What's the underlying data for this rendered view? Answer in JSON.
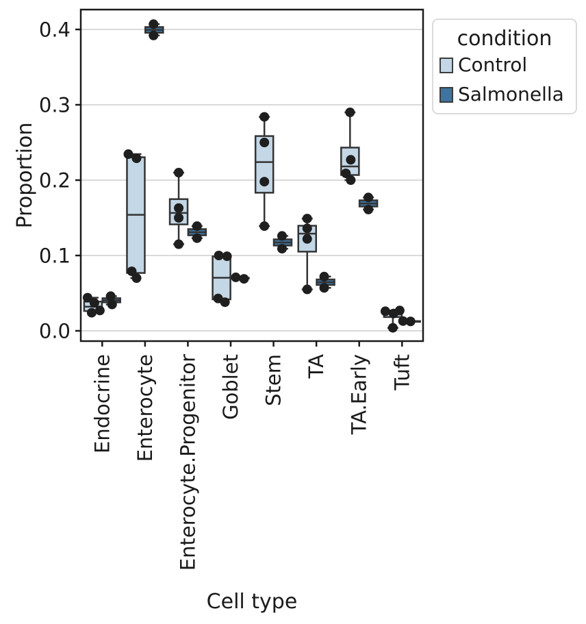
{
  "figure": {
    "background": "#ffffff"
  },
  "chart_data": {
    "type": "box",
    "title": "",
    "xlabel": "Cell type",
    "ylabel": "Proportion",
    "categories": [
      "Endocrine",
      "Enterocyte",
      "Enterocyte.Progenitor",
      "Goblet",
      "Stem",
      "TA",
      "TA.Early",
      "Tuft"
    ],
    "yticks": [
      0.0,
      0.1,
      0.2,
      0.3,
      0.4
    ],
    "ytick_labels": [
      "0.0",
      "0.1",
      "0.2",
      "0.3",
      "0.4"
    ],
    "ylim": [
      -0.0136,
      0.4264
    ],
    "grid": "horizontal",
    "legend": {
      "title": "condition",
      "position": "upper-right-outside",
      "items": [
        {
          "label": "Control",
          "color": "#c3d7e6"
        },
        {
          "label": "Salmonella",
          "color": "#40749f"
        }
      ]
    },
    "colors": {
      "box_edge": "#333333",
      "point": "#1f1f1f",
      "grid": "#d9d9d9",
      "axis": "#1a1a1a",
      "legend_border": "#cfcfcf",
      "swatch_edge": "#3c3c3c"
    },
    "series": [
      {
        "name": "Control",
        "color": "#c3d7e6",
        "boxes": [
          {
            "whislo": 0.024,
            "q1": 0.0263,
            "med": 0.032,
            "q3": 0.0388,
            "whishi": 0.044
          },
          {
            "whislo": 0.07,
            "q1": 0.0768,
            "med": 0.154,
            "q3": 0.2304,
            "whishi": 0.2345
          },
          {
            "whislo": 0.115,
            "q1": 0.1413,
            "med": 0.1565,
            "q3": 0.1748,
            "whishi": 0.21
          },
          {
            "whislo": 0.038,
            "q1": 0.0418,
            "med": 0.0705,
            "q3": 0.0988,
            "whishi": 0.1
          },
          {
            "whislo": 0.139,
            "q1": 0.1833,
            "med": 0.224,
            "q3": 0.2585,
            "whishi": 0.284
          },
          {
            "whislo": 0.055,
            "q1": 0.1051,
            "med": 0.129,
            "q3": 0.1395,
            "whishi": 0.149
          },
          {
            "whislo": 0.2,
            "q1": 0.2068,
            "med": 0.2182,
            "q3": 0.2432,
            "whishi": 0.29
          },
          {
            "whislo": 0.004,
            "q1": 0.0183,
            "med": 0.0245,
            "q3": 0.0263,
            "whishi": 0.027
          }
        ],
        "points": [
          [
            [
              0.044,
              -8
            ],
            [
              0.037,
              2
            ],
            [
              0.027,
              10
            ],
            [
              0.024,
              -2
            ]
          ],
          [
            [
              0.2345,
              -11
            ],
            [
              0.229,
              1
            ],
            [
              0.079,
              -6
            ],
            [
              0.07,
              1
            ]
          ],
          [
            [
              0.21,
              0
            ],
            [
              0.163,
              0
            ],
            [
              0.15,
              0
            ],
            [
              0.115,
              0
            ]
          ],
          [
            [
              0.1,
              -4
            ],
            [
              0.099,
              8
            ],
            [
              0.043,
              -5
            ],
            [
              0.038,
              5
            ]
          ],
          [
            [
              0.284,
              0
            ],
            [
              0.25,
              0
            ],
            [
              0.198,
              0
            ],
            [
              0.139,
              0
            ]
          ],
          [
            [
              0.149,
              0
            ],
            [
              0.136,
              0
            ],
            [
              0.122,
              0
            ],
            [
              0.055,
              0
            ]
          ],
          [
            [
              0.29,
              0
            ],
            [
              0.227,
              1
            ],
            [
              0.209,
              -6
            ],
            [
              0.2,
              1
            ]
          ],
          [
            [
              0.026,
              -11
            ],
            [
              0.023,
              1
            ],
            [
              0.027,
              10
            ],
            [
              0.004,
              0
            ]
          ]
        ]
      },
      {
        "name": "Salmonella",
        "color": "#40749f",
        "boxes": [
          {
            "whislo": 0.035,
            "q1": 0.0378,
            "med": 0.0405,
            "q3": 0.0433,
            "whishi": 0.046
          },
          {
            "whislo": 0.392,
            "q1": 0.3956,
            "med": 0.3994,
            "q3": 0.4032,
            "whishi": 0.407
          },
          {
            "whislo": 0.123,
            "q1": 0.1268,
            "med": 0.1309,
            "q3": 0.135,
            "whishi": 0.139
          },
          {
            "whislo": 0.069,
            "q1": 0.0695,
            "med": 0.07,
            "q3": 0.0705,
            "whishi": 0.071
          },
          {
            "whislo": 0.109,
            "q1": 0.1132,
            "med": 0.1173,
            "q3": 0.1214,
            "whishi": 0.126
          },
          {
            "whislo": 0.057,
            "q1": 0.0609,
            "med": 0.0645,
            "q3": 0.0682,
            "whishi": 0.072
          },
          {
            "whislo": 0.161,
            "q1": 0.165,
            "med": 0.169,
            "q3": 0.1732,
            "whishi": 0.177
          },
          {
            "whislo": 0.0125,
            "q1": 0.0126,
            "med": 0.0128,
            "q3": 0.0129,
            "whishi": 0.013
          }
        ],
        "points": [
          [
            [
              0.046,
              -1
            ],
            [
              0.035,
              1
            ]
          ],
          [
            [
              0.407,
              -1
            ],
            [
              0.392,
              -1
            ]
          ],
          [
            [
              0.139,
              0
            ],
            [
              0.123,
              0
            ]
          ],
          [
            [
              0.071,
              -6
            ],
            [
              0.069,
              6
            ]
          ],
          [
            [
              0.126,
              -1
            ],
            [
              0.109,
              -1
            ]
          ],
          [
            [
              0.072,
              -2
            ],
            [
              0.057,
              -2
            ]
          ],
          [
            [
              0.177,
              0
            ],
            [
              0.161,
              0
            ]
          ],
          [
            [
              0.013,
              -12
            ],
            [
              0.0125,
              -1
            ]
          ]
        ]
      }
    ]
  }
}
